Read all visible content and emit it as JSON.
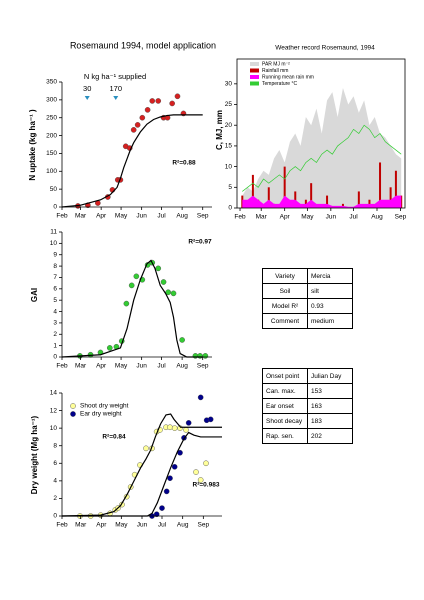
{
  "chart_data": [
    {
      "type": "scatter",
      "title": "Rosemaund 1994, model application",
      "ylabel": "N uptake (kg ha⁻¹ )",
      "xlim": [
        32,
        258
      ],
      "xticks": [
        {
          "value": 32,
          "label": "Feb"
        },
        {
          "value": 60,
          "label": "Mar"
        },
        {
          "value": 91,
          "label": "Apr"
        },
        {
          "value": 121,
          "label": "May"
        },
        {
          "value": 152,
          "label": "Jun"
        },
        {
          "value": 182,
          "label": "Jul"
        },
        {
          "value": 213,
          "label": "Aug"
        },
        {
          "value": 244,
          "label": "Sep"
        }
      ],
      "ylim": [
        0,
        350
      ],
      "yticks": [
        0,
        50,
        100,
        150,
        200,
        250,
        300,
        350
      ],
      "series": [
        {
          "type": "scatter",
          "color": "#d62020",
          "x": [
            56,
            71,
            86,
            101,
            108,
            116,
            120,
            128,
            134,
            140,
            146,
            153,
            161,
            168,
            177,
            185,
            191,
            198,
            206,
            215
          ],
          "values": [
            3,
            5,
            11,
            28,
            48,
            76,
            76,
            170,
            165,
            216,
            230,
            250,
            272,
            297,
            297,
            250,
            250,
            290,
            310,
            262
          ]
        },
        {
          "type": "line",
          "color": "#000000",
          "x": [
            32,
            60,
            90,
            105,
            115,
            120,
            125,
            130,
            135,
            140,
            150,
            160,
            170,
            180,
            190,
            200,
            210,
            230,
            244
          ],
          "values": [
            0,
            5,
            20,
            35,
            55,
            80,
            110,
            135,
            160,
            180,
            210,
            232,
            245,
            252,
            256,
            258,
            258,
            258,
            258
          ]
        }
      ],
      "supply": {
        "label": "N kg ha⁻¹ supplied",
        "x": [
          70,
          113
        ],
        "amounts": [
          30,
          170
        ]
      },
      "annotations": [
        "R²=0.88"
      ]
    },
    {
      "type": "combo",
      "title": "Weather record Rosemaund, 1994",
      "ylabel": "C, MJ, mm",
      "xlim": [
        28,
        250
      ],
      "xticks": [
        {
          "value": 32,
          "label": "Feb"
        },
        {
          "value": 60,
          "label": "Mar"
        },
        {
          "value": 91,
          "label": "Apr"
        },
        {
          "value": 121,
          "label": "May"
        },
        {
          "value": 152,
          "label": "Jun"
        },
        {
          "value": 182,
          "label": "Jul"
        },
        {
          "value": 213,
          "label": "Aug"
        },
        {
          "value": 244,
          "label": "Sep"
        }
      ],
      "ylim": [
        0,
        36
      ],
      "yticks": [
        0,
        5,
        10,
        15,
        20,
        25,
        30
      ],
      "x": [
        35,
        42,
        49,
        56,
        63,
        70,
        77,
        84,
        91,
        98,
        105,
        112,
        119,
        126,
        133,
        140,
        147,
        154,
        161,
        168,
        175,
        182,
        189,
        196,
        203,
        210,
        217,
        224,
        231,
        238,
        245
      ],
      "series": [
        {
          "type": "area",
          "name": "PAR MJ m⁻²",
          "color": "#d9d9d9",
          "values": [
            3,
            5,
            4,
            7,
            9,
            8,
            12,
            14,
            11,
            16,
            18,
            15,
            22,
            20,
            24,
            18,
            26,
            28,
            22,
            29,
            25,
            27,
            23,
            26,
            20,
            22,
            18,
            17,
            15,
            13,
            12
          ]
        },
        {
          "type": "bar",
          "name": "Rainfall mm",
          "color": "#c00000",
          "values": [
            3,
            0,
            8,
            2,
            0,
            5,
            1,
            0,
            10,
            0,
            4,
            0,
            2,
            6,
            0,
            0,
            3,
            0,
            0,
            1,
            0,
            0,
            4,
            0,
            2,
            0,
            11,
            0,
            5,
            9,
            3
          ]
        },
        {
          "type": "area",
          "name": "Running mean rain mm",
          "color": "#ff00ff",
          "values": [
            2,
            2,
            3,
            2,
            1,
            2,
            1,
            1,
            3,
            2,
            2,
            1,
            1,
            2,
            1,
            1,
            1,
            0.5,
            0.5,
            0.5,
            0.3,
            0.3,
            1,
            1,
            1,
            1,
            2,
            2,
            2,
            3,
            3
          ]
        },
        {
          "type": "line",
          "name": "Temperature °C",
          "color": "#33cc33",
          "values": [
            4,
            5,
            6,
            5,
            7,
            6,
            7,
            8,
            7,
            9,
            10,
            9,
            11,
            12,
            11,
            13,
            14,
            13,
            15,
            16,
            17,
            19,
            18,
            20,
            19,
            17,
            18,
            16,
            15,
            14,
            13
          ]
        }
      ]
    },
    {
      "type": "scatter",
      "ylabel": "GAI",
      "xlim": [
        32,
        258
      ],
      "xticks": [
        {
          "value": 32,
          "label": "Feb"
        },
        {
          "value": 60,
          "label": "Mar"
        },
        {
          "value": 91,
          "label": "Apr"
        },
        {
          "value": 121,
          "label": "May"
        },
        {
          "value": 152,
          "label": "Jun"
        },
        {
          "value": 182,
          "label": "Jul"
        },
        {
          "value": 213,
          "label": "Aug"
        },
        {
          "value": 244,
          "label": "Sep"
        }
      ],
      "ylim": [
        0,
        11
      ],
      "yticks": [
        0,
        1,
        2,
        3,
        4,
        5,
        6,
        7,
        8,
        9,
        10,
        11
      ],
      "series": [
        {
          "type": "scatter",
          "color": "#33cc33",
          "x": [
            59,
            75,
            90,
            104,
            114,
            122,
            129,
            137,
            144,
            153,
            161,
            168,
            177,
            185,
            192,
            200,
            213,
            233,
            240,
            248
          ],
          "values": [
            0.1,
            0.2,
            0.4,
            0.8,
            0.9,
            1.4,
            4.7,
            6.3,
            7.1,
            6.8,
            8.1,
            8.3,
            7.8,
            6.6,
            5.7,
            5.6,
            1.5,
            0.1,
            0.1,
            0.1
          ]
        },
        {
          "type": "line",
          "color": "#000000",
          "x": [
            32,
            90,
            110,
            120,
            130,
            140,
            150,
            160,
            166,
            172,
            180,
            188,
            195,
            200,
            205,
            210,
            220,
            244
          ],
          "values": [
            0,
            0.2,
            0.6,
            0.8,
            2.5,
            5,
            6.8,
            8.2,
            8.5,
            7.8,
            6.3,
            5.6,
            4.8,
            3.5,
            1.5,
            0.3,
            0,
            0
          ]
        }
      ],
      "annotations": [
        "R²=0.97"
      ]
    },
    {
      "type": "scatter",
      "ylabel": "Dry weight (Mg ha⁻¹)",
      "xlim": [
        32,
        272
      ],
      "xticks": [
        {
          "value": 32,
          "label": "Feb"
        },
        {
          "value": 60,
          "label": "Mar"
        },
        {
          "value": 91,
          "label": "Apr"
        },
        {
          "value": 121,
          "label": "May"
        },
        {
          "value": 152,
          "label": "Jun"
        },
        {
          "value": 182,
          "label": "Jul"
        },
        {
          "value": 213,
          "label": "Aug"
        },
        {
          "value": 244,
          "label": "Sep"
        }
      ],
      "ylim": [
        0,
        14
      ],
      "yticks": [
        0,
        2,
        4,
        6,
        8,
        10,
        12,
        14
      ],
      "series": [
        {
          "type": "scatter",
          "name": "Shoot dry weight",
          "color": "#ffff99",
          "x": [
            59,
            75,
            90,
            104,
            112,
            116,
            122,
            129,
            135,
            141,
            149,
            158,
            167,
            174,
            179,
            188,
            194,
            201,
            209,
            218,
            233,
            240,
            248
          ],
          "values": [
            0,
            0,
            0.1,
            0.3,
            0.7,
            0.9,
            1.3,
            2.2,
            3.3,
            4.7,
            5.8,
            7.7,
            7.7,
            9.6,
            9.8,
            10.1,
            10.1,
            10,
            10,
            9.8,
            5,
            4.1,
            6
          ]
        },
        {
          "type": "scatter",
          "name": "Ear dry weight",
          "color": "#00008b",
          "x": [
            167,
            174,
            182,
            189,
            194,
            201,
            209,
            215,
            222,
            240,
            249,
            255
          ],
          "values": [
            0,
            0.2,
            0.9,
            2.8,
            4.3,
            5.6,
            7.2,
            8.9,
            10.6,
            13.5,
            10.9,
            11
          ]
        },
        {
          "type": "line",
          "color": "#000000",
          "x": [
            32,
            90,
            110,
            120,
            130,
            140,
            150,
            158,
            165,
            172,
            180,
            188,
            195,
            200,
            210,
            272
          ],
          "values": [
            0,
            0.1,
            0.5,
            1.2,
            2.5,
            4,
            5.5,
            6.5,
            7.5,
            9,
            10.5,
            11.5,
            11.6,
            11,
            10.1,
            10.1
          ]
        },
        {
          "type": "line",
          "color": "#000000",
          "x": [
            32,
            160,
            167,
            175,
            185,
            195,
            205,
            215,
            222,
            230,
            240,
            272
          ],
          "values": [
            0,
            0,
            0.3,
            1.5,
            3.5,
            5.5,
            7.3,
            8.8,
            9.5,
            9.2,
            9,
            9
          ]
        }
      ],
      "legend": "upper left",
      "annotations": [
        "R²=0.84",
        "R²=0.983"
      ]
    }
  ],
  "tables": [
    {
      "rows": [
        [
          "Variety",
          "Mercia"
        ],
        [
          "Soil",
          "silt"
        ],
        [
          "Model R²",
          "0.93"
        ],
        [
          "Comment",
          "medium"
        ]
      ]
    },
    {
      "rows": [
        [
          "Onset point",
          "Julian Day"
        ],
        [
          "Can. max.",
          "153"
        ],
        [
          "Ear onset",
          "163"
        ],
        [
          "Shoot decay",
          "183"
        ],
        [
          "Rap. sen.",
          "202"
        ]
      ]
    }
  ]
}
